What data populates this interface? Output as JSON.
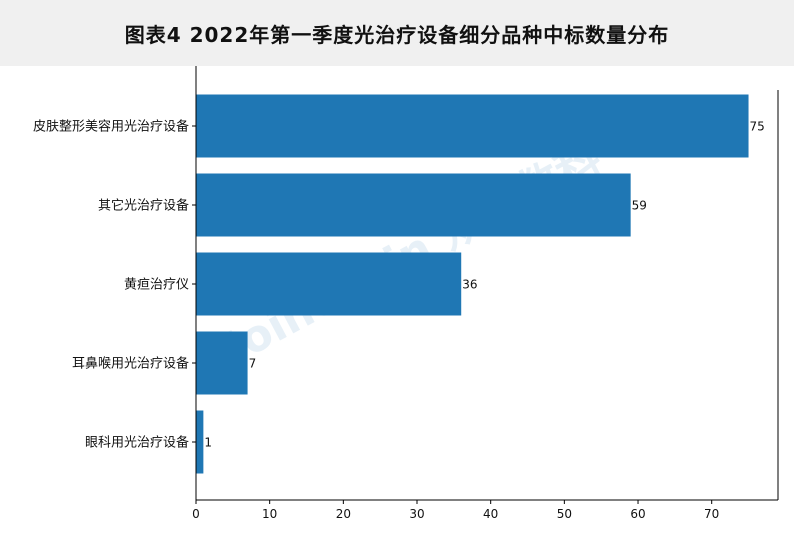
{
  "header": {
    "title": "图表4   2022年第一季度光治疗设备细分品种中标数量分布"
  },
  "watermark": "Joinchain 众成数科",
  "colors": {
    "bar": "#1f77b4",
    "title_background": "#f0f0f0",
    "axis": "#000000"
  },
  "chart_data": {
    "type": "bar",
    "orientation": "horizontal",
    "title": "图表4   2022年第一季度光治疗设备细分品种中标数量分布",
    "xlabel": "",
    "ylabel": "",
    "categories": [
      "皮肤整形美容用光治疗设备",
      "其它光治疗设备",
      "黄疸治疗仪",
      "耳鼻喉用光治疗设备",
      "眼科用光治疗设备"
    ],
    "values": [
      75,
      59,
      36,
      7,
      1
    ],
    "xlim": [
      0,
      79
    ],
    "xticks": [
      0,
      10,
      20,
      30,
      40,
      50,
      60,
      70
    ],
    "grid": false,
    "legend": "none"
  }
}
